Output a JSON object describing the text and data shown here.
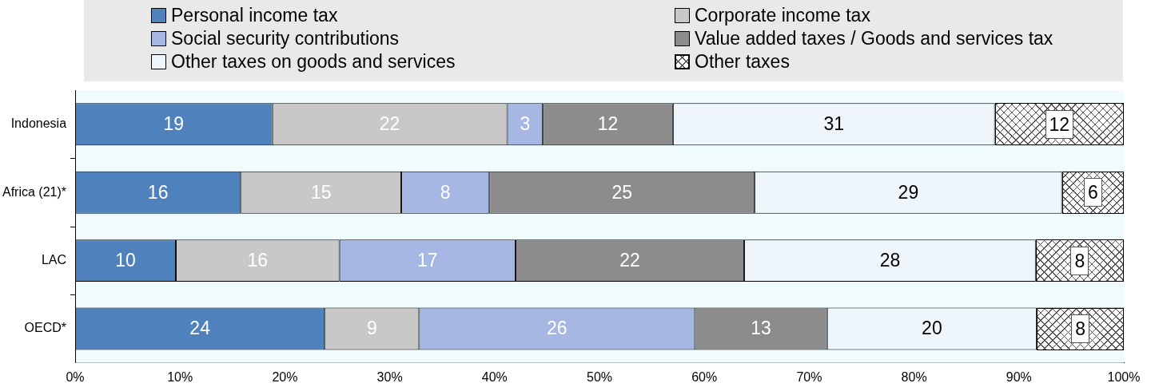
{
  "chart_data": {
    "type": "bar",
    "orientation": "horizontal",
    "stacked": true,
    "categories": [
      "Indonesia",
      "Africa (21)*",
      "LAC",
      "OECD*"
    ],
    "series": [
      {
        "name": "Personal income tax",
        "color": "#4f81bd",
        "values": [
          18.8,
          15.8,
          9.6,
          23.8
        ],
        "value_labels": [
          "19",
          "16",
          "10",
          "24"
        ]
      },
      {
        "name": "Corporate income tax",
        "color": "#c8c8c8",
        "values": [
          22.4,
          15.3,
          15.6,
          9.0
        ],
        "value_labels": [
          "22",
          "15",
          "16",
          "9"
        ]
      },
      {
        "name": "Social security contributions",
        "color": "#a7b7e3",
        "values": [
          3.4,
          8.4,
          16.8,
          26.3
        ],
        "value_labels": [
          "3",
          "8",
          "17",
          "26"
        ]
      },
      {
        "name": "Value added taxes / Goods and services tax",
        "color": "#8c8c8c",
        "values": [
          12.4,
          25.3,
          21.8,
          12.6
        ],
        "value_labels": [
          "12",
          "25",
          "22",
          "13"
        ]
      },
      {
        "name": "Other taxes on goods and services",
        "color": "#eef5fb",
        "values": [
          30.7,
          29.3,
          27.8,
          20.0
        ],
        "value_labels": [
          "31",
          "29",
          "28",
          "20"
        ]
      },
      {
        "name": "Other taxes",
        "color": "#ffffff",
        "values": [
          12.3,
          5.9,
          8.4,
          8.3
        ],
        "value_labels": [
          "12",
          "6",
          "8",
          "8"
        ]
      }
    ],
    "xlim": [
      0,
      100
    ],
    "xticks": [
      {
        "value": 0,
        "label": "0%"
      },
      {
        "value": 10,
        "label": "10%"
      },
      {
        "value": 20,
        "label": "20%"
      },
      {
        "value": 30,
        "label": "30%"
      },
      {
        "value": 40,
        "label": "40%"
      },
      {
        "value": 50,
        "label": "50%"
      },
      {
        "value": 60,
        "label": "60%"
      },
      {
        "value": 70,
        "label": "70%"
      },
      {
        "value": 80,
        "label": "80%"
      },
      {
        "value": 90,
        "label": "90%"
      },
      {
        "value": 100,
        "label": "100%"
      }
    ],
    "grid": false,
    "legend": "top"
  }
}
